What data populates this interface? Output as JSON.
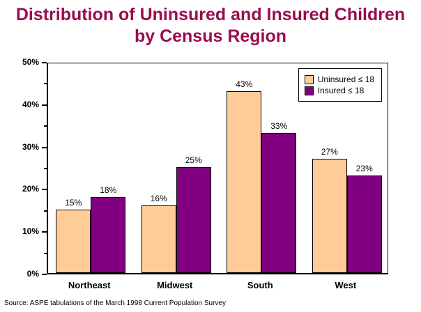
{
  "title": {
    "line1": "Distribution of Uninsured and Insured Children",
    "line2": "by Census Region",
    "color": "#9B0D4D"
  },
  "legend": {
    "items": [
      {
        "label": "Uninsured ≤ 18",
        "color": "#FFCC99"
      },
      {
        "label": "Insured ≤ 18",
        "color": "#800080"
      }
    ]
  },
  "source": "Source: ASPE tabulations of the March 1998 Current Population  Survey",
  "chart_data": {
    "type": "bar",
    "categories": [
      "Northeast",
      "Midwest",
      "South",
      "West"
    ],
    "series": [
      {
        "name": "Uninsured ≤ 18",
        "color": "#FFCC99",
        "values": [
          15,
          16,
          43,
          27
        ]
      },
      {
        "name": "Insured ≤ 18",
        "color": "#800080",
        "values": [
          18,
          25,
          33,
          23
        ]
      }
    ],
    "title": "Distribution of Uninsured and Insured Children by Census Region",
    "xlabel": "",
    "ylabel": "",
    "ylim": [
      0,
      50
    ],
    "y_major_ticks": [
      0,
      10,
      20,
      30,
      40,
      50
    ],
    "y_tick_labels": [
      "0%",
      "10%",
      "20%",
      "30%",
      "40%",
      "50%"
    ],
    "y_minor_step": 5,
    "tick_format": "percent",
    "data_labels": true,
    "data_label_format": "percent",
    "grid": false,
    "legend_position": "top-right"
  }
}
